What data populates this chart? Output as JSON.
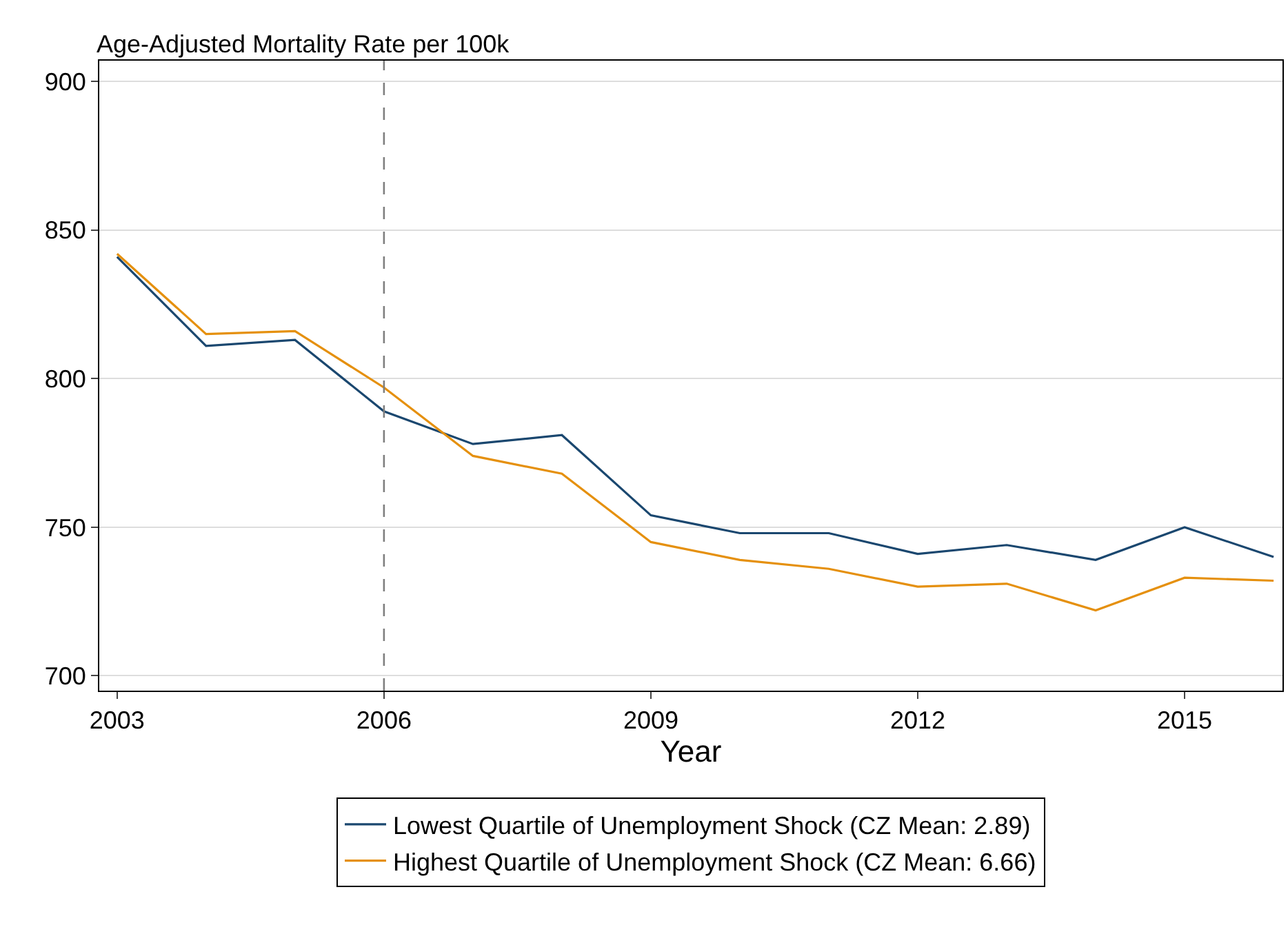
{
  "chart_data": {
    "type": "line",
    "ylabel": "Age-Adjusted Mortality Rate per 100k",
    "xlabel": "Year",
    "x": [
      2003,
      2004,
      2005,
      2006,
      2007,
      2008,
      2009,
      2010,
      2011,
      2012,
      2013,
      2014,
      2015,
      2016
    ],
    "series": [
      {
        "name": "Lowest Quartile of Unemployment Shock (CZ Mean: 2.89)",
        "color": "#1a476f",
        "values": [
          841,
          811,
          813,
          789,
          778,
          781,
          754,
          748,
          748,
          741,
          744,
          739,
          750,
          740
        ]
      },
      {
        "name": "Highest Quartile of Unemployment Shock (CZ Mean: 6.66)",
        "color": "#e5900e",
        "values": [
          842,
          815,
          816,
          797,
          774,
          768,
          745,
          739,
          736,
          730,
          731,
          722,
          733,
          732
        ]
      }
    ],
    "xlim": [
      2002.8,
      2016.1
    ],
    "xticks": [
      2003,
      2006,
      2009,
      2012,
      2015
    ],
    "ylim": [
      695,
      907
    ],
    "yticks": [
      700,
      750,
      800,
      850,
      900
    ],
    "ref_lines": [
      {
        "axis": "x",
        "value": 2006,
        "color": "#7f7f7f",
        "line_style": "dashed"
      }
    ],
    "grid": "y",
    "legend": "bottom",
    "line_style": "solid",
    "marker": "none"
  }
}
